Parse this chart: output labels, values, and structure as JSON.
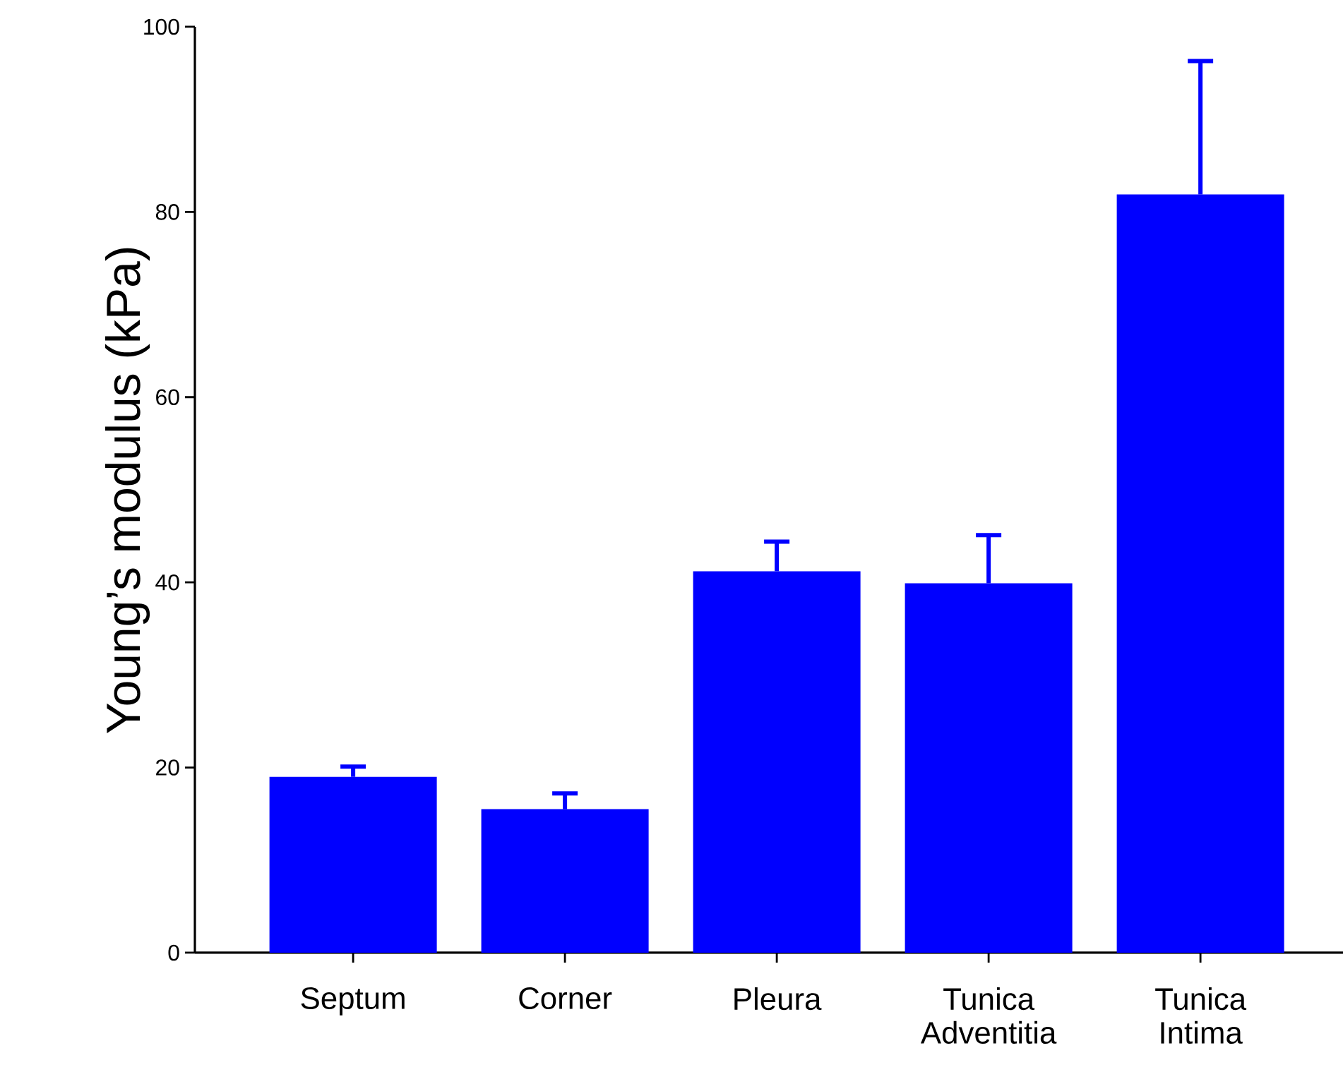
{
  "chart_data": {
    "type": "bar",
    "ylabel": "Young’s modulus (kPa)",
    "categories": [
      "Septum",
      "Corner",
      "Pleura",
      "Tunica Adventitia",
      "Tunica Intima"
    ],
    "values": [
      19,
      15.5,
      41.2,
      39.9,
      81.9
    ],
    "errors": [
      [
        19,
        20.1
      ],
      [
        15.5,
        17.2
      ],
      [
        41.2,
        44.4
      ],
      [
        39.9,
        45.1
      ],
      [
        81.9,
        96.3
      ]
    ],
    "color": "#0000ff",
    "ylim": [
      0,
      100
    ],
    "yticks": [
      0,
      20,
      40,
      60,
      80,
      100
    ],
    "grid": false
  }
}
